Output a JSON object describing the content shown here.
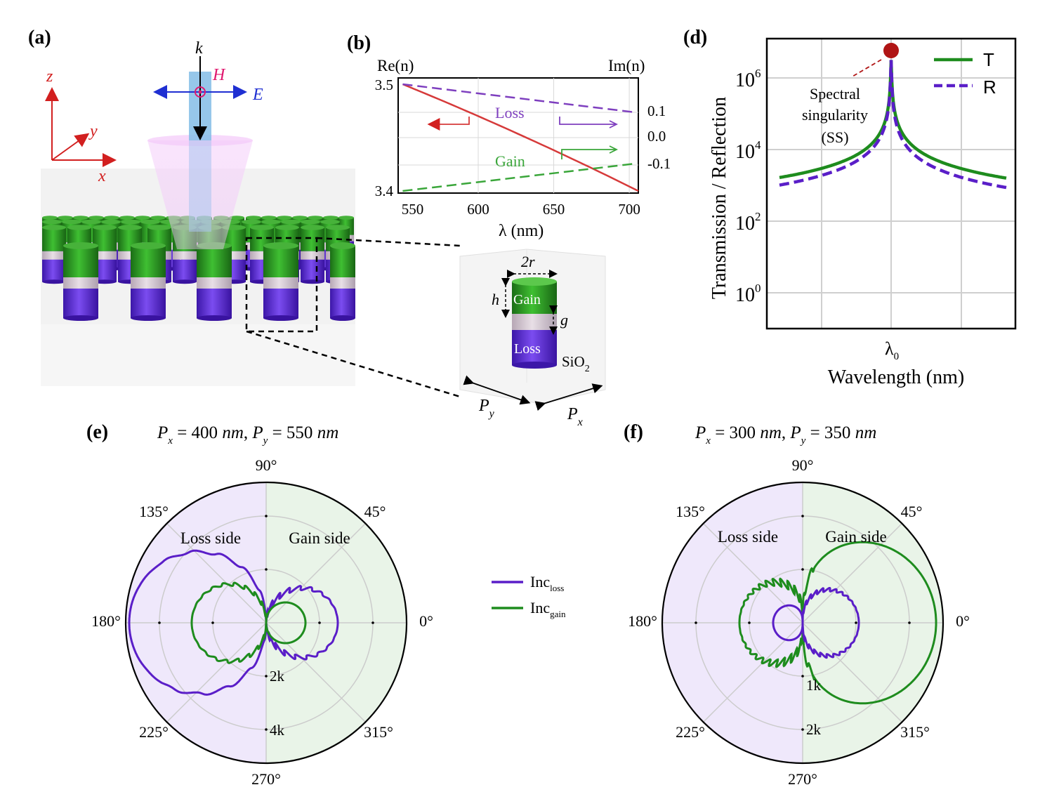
{
  "panels": {
    "a": "(a)",
    "b": "(b)",
    "d": "(d)",
    "e": "(e)",
    "f": "(f)"
  },
  "panel_a": {
    "axes": {
      "z": "z",
      "y": "y",
      "x": "x"
    },
    "beam": {
      "k": "k",
      "H": "H",
      "E": "E"
    }
  },
  "panel_b": {
    "left_axis_title": "Re(n)",
    "right_axis_title": "Im(n)",
    "xlabel": "λ (nm)",
    "left_ticks": [
      "3.5",
      "3.4"
    ],
    "right_ticks": [
      "0.1",
      "0.0",
      "-0.1"
    ],
    "x_ticks": [
      "550",
      "600",
      "650",
      "700"
    ],
    "labels": {
      "loss": "Loss",
      "gain": "Gain"
    },
    "colors": {
      "re": "#d63a3a",
      "loss": "#7e3fbf",
      "gain": "#3aa63a"
    }
  },
  "unit_cell": {
    "two_r": "2r",
    "h": "h",
    "g": "g",
    "gain": "Gain",
    "loss": "Loss",
    "substrate": "SiO",
    "substrate_sub": "2",
    "py": "P",
    "py_sub": "y",
    "px": "P",
    "px_sub": "x"
  },
  "panel_d": {
    "ylabel": "Transmission / Reflection",
    "xlabel": "Wavelength (nm)",
    "x_marker": "λ",
    "x_marker_sub": "0",
    "y_ticks": [
      {
        "base": "10",
        "exp": "6"
      },
      {
        "base": "10",
        "exp": "4"
      },
      {
        "base": "10",
        "exp": "2"
      },
      {
        "base": "10",
        "exp": "0"
      }
    ],
    "legend": [
      {
        "name": "T",
        "color": "#1e8c1e",
        "style": "solid"
      },
      {
        "name": "R",
        "color": "#5a1ec8",
        "style": "dashed"
      }
    ],
    "annotation": [
      "Spectral",
      "singularity",
      "(SS)"
    ],
    "singularity_color": "#b01515"
  },
  "panel_e": {
    "title_px": "P",
    "title_px_sub": "x",
    "title_px_val": " = 400 ",
    "title_unit": "nm",
    "title_py": "P",
    "title_py_sub": "y",
    "title_py_val": " = 550 ",
    "angles": [
      "90°",
      "45°",
      "0°",
      "315°",
      "270°",
      "225°",
      "180°",
      "135°"
    ],
    "radial_ticks": [
      "2k",
      "4k"
    ],
    "loss_side": "Loss side",
    "gain_side": "Gain side"
  },
  "panel_f": {
    "title_px": "P",
    "title_px_sub": "x",
    "title_px_val": " = 300 ",
    "title_unit": "nm",
    "title_py": "P",
    "title_py_sub": "y",
    "title_py_val": " = 350 ",
    "angles": [
      "90°",
      "45°",
      "0°",
      "315°",
      "270°",
      "225°",
      "180°",
      "135°"
    ],
    "radial_ticks": [
      "1k",
      "2k"
    ],
    "loss_side": "Loss side",
    "gain_side": "Gain side"
  },
  "polar_legend": [
    {
      "name": "Inc",
      "sub": "loss",
      "color": "#5a1ec8"
    },
    {
      "name": "Inc",
      "sub": "gain",
      "color": "#1e8c1e"
    }
  ],
  "colors": {
    "loss_fill": "#efe8fb",
    "gain_fill": "#e9f4e8",
    "loss_curve": "#5a1ec8",
    "gain_curve": "#1e8c1e"
  }
}
